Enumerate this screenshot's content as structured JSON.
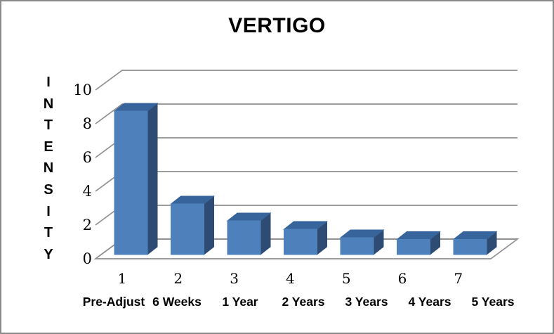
{
  "window": {
    "background_color": "#ffffff",
    "frame_border_color": "#8a8a8a"
  },
  "chart_data": {
    "type": "bar",
    "style": "3d-column",
    "title": "VERTIGO",
    "ylabel": "INTENSITY",
    "ylabel_rendered_as_stacked_letters": true,
    "xlabel": "",
    "ylim": [
      0,
      10
    ],
    "yticks": [
      10,
      8,
      6,
      4,
      2,
      0
    ],
    "grid": true,
    "legend": false,
    "categories_row1": [
      "1",
      "2",
      "3",
      "4",
      "5",
      "6",
      "7"
    ],
    "categories_row2": [
      "Pre-Adjust",
      "6 Weeks",
      "1 Year",
      "2 Years",
      "3 Years",
      "4 Years",
      "5 Years"
    ],
    "values": [
      8.5,
      3,
      2,
      1.5,
      1,
      0.9,
      0.9
    ],
    "colors": {
      "bar_front": "#4e80bc",
      "bar_top": "#38649c",
      "bar_side": "#2d4b73",
      "gridline": "#8f8f8f",
      "text": "#000000"
    }
  }
}
